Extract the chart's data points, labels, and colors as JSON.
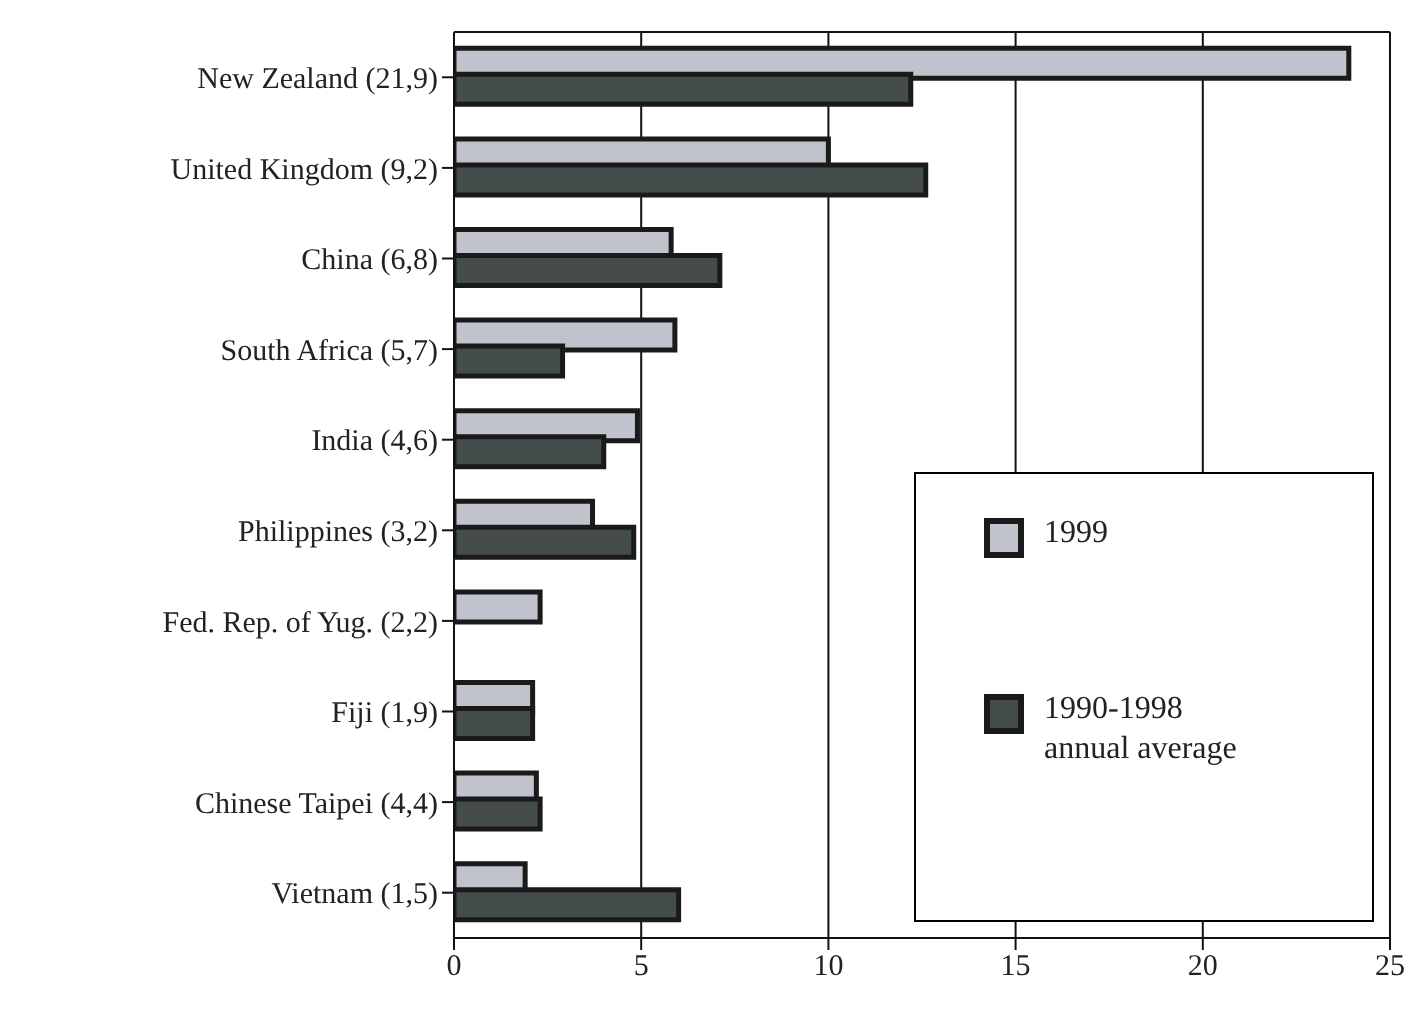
{
  "chart_data": {
    "type": "bar",
    "orientation": "horizontal",
    "categories": [
      "New Zealand (21,9)",
      "United Kingdom (9,2)",
      "China (6,8)",
      "South Africa (5,7)",
      "India (4,6)",
      "Philippines (3,2)",
      "Fed. Rep. of Yug. (2,2)",
      "Fiji (1,9)",
      "Chinese Taipei (4,4)",
      "Vietnam (1,5)"
    ],
    "series": [
      {
        "name": "1999",
        "color": "#c0c3cc",
        "values": [
          23.9,
          10.0,
          5.8,
          5.9,
          4.9,
          3.7,
          2.3,
          2.1,
          2.2,
          1.9
        ]
      },
      {
        "name": "1990-1998 annual average",
        "color": "#444c4c",
        "values": [
          12.2,
          12.6,
          7.1,
          2.9,
          4.0,
          4.8,
          null,
          2.1,
          2.3,
          6.0
        ]
      }
    ],
    "xlim": [
      0,
      25
    ],
    "xticks": [
      0,
      5,
      10,
      15,
      20,
      25
    ],
    "grid": "x",
    "legend": "bottom right"
  }
}
